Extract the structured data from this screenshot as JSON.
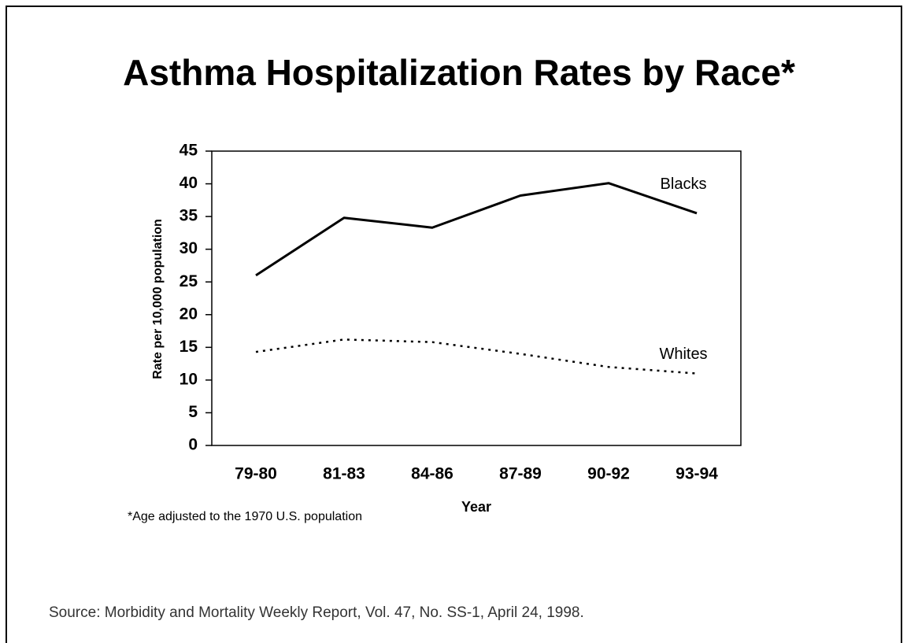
{
  "chart_data": {
    "type": "line",
    "title": "Asthma Hospitalization Rates by Race*",
    "x_label": "Year",
    "y_label": "Rate per 10,000 population",
    "footnote": "*Age adjusted to the 1970 U.S. population",
    "source": "Source: Morbidity and Mortality Weekly Report, Vol. 47, No. SS-1, April 24, 1998.",
    "categories": [
      "79-80",
      "81-83",
      "84-86",
      "87-89",
      "90-92",
      "93-94"
    ],
    "series": [
      {
        "name": "Blacks",
        "color": "#000000",
        "style": "solid",
        "values": [
          26,
          34.8,
          33.3,
          38.2,
          40.1,
          35.5
        ]
      },
      {
        "name": "Whites",
        "color": "#000000",
        "style": "dotted",
        "values": [
          14.3,
          16.2,
          15.8,
          14,
          12,
          11
        ]
      }
    ],
    "ylim": [
      0,
      45
    ],
    "yticks": [
      0,
      5,
      10,
      15,
      20,
      25,
      30,
      35,
      40,
      45
    ],
    "grid": false
  }
}
